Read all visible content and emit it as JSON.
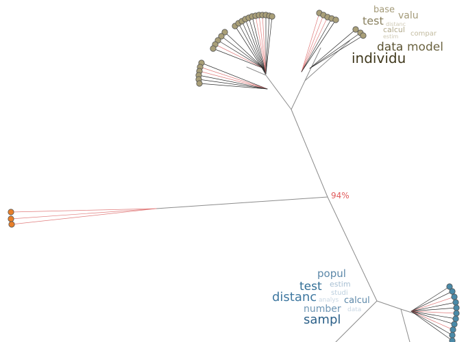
{
  "diagram": {
    "type": "unrooted-phylogenetic-tree-with-word-clouds",
    "support_label": "94%",
    "colors": {
      "branch": "#8a8a8a",
      "leaf_edge": "#2a2a2a",
      "highlight_edge": "#e07a7a",
      "support_label": "#e05a5a",
      "node_olive": "#a99f78",
      "node_orange": "#e87f2a",
      "node_teal": "#4a8aa8",
      "node_stroke": "#555555"
    },
    "clusters": [
      {
        "name": "olive",
        "node_color": "#a99f78",
        "word_cloud": [
          {
            "text": "base",
            "weight": 2,
            "color": "#a39a78"
          },
          {
            "text": "valu",
            "weight": 2,
            "color": "#a39a78"
          },
          {
            "text": "test",
            "weight": 3,
            "color": "#8a8160"
          },
          {
            "text": "distanc",
            "weight": 0,
            "color": "#cfc9b4"
          },
          {
            "text": "calcul",
            "weight": 1,
            "color": "#b2aa8c"
          },
          {
            "text": "estim",
            "weight": 0,
            "color": "#cfc9b4"
          },
          {
            "text": "compar",
            "weight": 0,
            "color": "#c2bb9f"
          },
          {
            "text": "data",
            "weight": 4,
            "color": "#5a5230"
          },
          {
            "text": "model",
            "weight": 4,
            "color": "#6b6340"
          },
          {
            "text": "individu",
            "weight": 5,
            "color": "#3f381c"
          }
        ]
      },
      {
        "name": "orange",
        "node_color": "#e87f2a",
        "word_cloud": []
      },
      {
        "name": "teal",
        "node_color": "#4a8aa8",
        "word_cloud": [
          {
            "text": "popul",
            "weight": 3,
            "color": "#5b87a8"
          },
          {
            "text": "test",
            "weight": 4,
            "color": "#2f6c94"
          },
          {
            "text": "estim",
            "weight": 1,
            "color": "#a7bfd2"
          },
          {
            "text": "studi",
            "weight": 0,
            "color": "#bccfde"
          },
          {
            "text": "distanc",
            "weight": 4,
            "color": "#3f78a0"
          },
          {
            "text": "analys",
            "weight": 0,
            "color": "#cad8e4"
          },
          {
            "text": "calcul",
            "weight": 3,
            "color": "#5b87a8"
          },
          {
            "text": "number",
            "weight": 3,
            "color": "#6e96b4"
          },
          {
            "text": "data",
            "weight": 0,
            "color": "#cad8e4"
          },
          {
            "text": "sampl",
            "weight": 5,
            "color": "#2a5f88"
          }
        ]
      }
    ]
  }
}
